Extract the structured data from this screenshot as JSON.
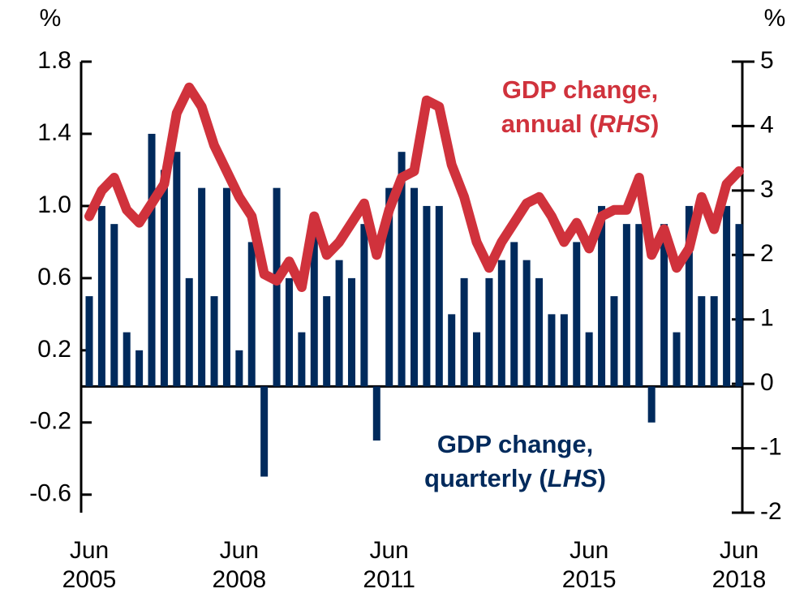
{
  "chart_data": {
    "type": "bar-line",
    "ylabel": "%",
    "y2label": "%",
    "categories": [
      "Jun 2005",
      null,
      null,
      null,
      null,
      null,
      null,
      null,
      null,
      null,
      null,
      null,
      "Jun 2008",
      null,
      null,
      null,
      null,
      null,
      null,
      null,
      null,
      null,
      null,
      null,
      "Jun 2011",
      null,
      null,
      null,
      null,
      null,
      null,
      null,
      null,
      null,
      null,
      null,
      null,
      null,
      null,
      null,
      "Jun 2015",
      null,
      null,
      null,
      null,
      null,
      null,
      null,
      null,
      null,
      null,
      null,
      "Jun 2018"
    ],
    "series": [
      {
        "name": "GDP change, quarterly (LHS)",
        "type": "bar",
        "color": "#002a5c",
        "axis": "y",
        "values": [
          0.5,
          1.0,
          0.9,
          0.3,
          0.2,
          1.4,
          1.2,
          1.3,
          0.6,
          1.1,
          0.5,
          1.1,
          0.2,
          0.8,
          -0.5,
          1.1,
          0.6,
          0.3,
          0.9,
          0.5,
          0.7,
          0.6,
          0.9,
          -0.3,
          1.1,
          1.3,
          1.1,
          1.0,
          1.0,
          0.4,
          0.6,
          0.3,
          0.6,
          0.7,
          0.8,
          0.7,
          0.6,
          0.4,
          0.4,
          0.8,
          0.3,
          1.0,
          0.5,
          0.9,
          0.9,
          -0.2,
          0.9,
          0.3,
          1.0,
          0.5,
          0.5,
          1.0,
          0.9
        ]
      },
      {
        "name": "GDP change, annual (RHS)",
        "type": "line",
        "color": "#d0323c",
        "axis": "y2",
        "values": [
          2.6,
          3.0,
          3.2,
          2.7,
          2.5,
          2.8,
          3.1,
          4.2,
          4.6,
          4.3,
          3.7,
          3.3,
          2.9,
          2.6,
          1.7,
          1.6,
          1.9,
          1.5,
          2.6,
          2.0,
          2.2,
          2.5,
          2.8,
          2.0,
          2.7,
          3.2,
          3.3,
          4.4,
          4.3,
          3.4,
          2.9,
          2.2,
          1.8,
          2.2,
          2.5,
          2.8,
          2.9,
          2.6,
          2.2,
          2.5,
          2.1,
          2.6,
          2.7,
          2.7,
          3.2,
          2.0,
          2.4,
          1.8,
          2.1,
          2.9,
          2.4,
          3.1,
          3.3
        ]
      }
    ],
    "ylim": [
      -0.7,
      1.8
    ],
    "yticks": [
      1.8,
      1.4,
      {
        "value": 1.0,
        "label": "1.0"
      },
      0.6,
      0.2,
      -0.2,
      -0.6
    ],
    "y2lim": [
      -2,
      5
    ],
    "y2ticks": [
      5,
      4,
      3,
      2,
      1,
      0,
      -1,
      -2
    ]
  }
}
